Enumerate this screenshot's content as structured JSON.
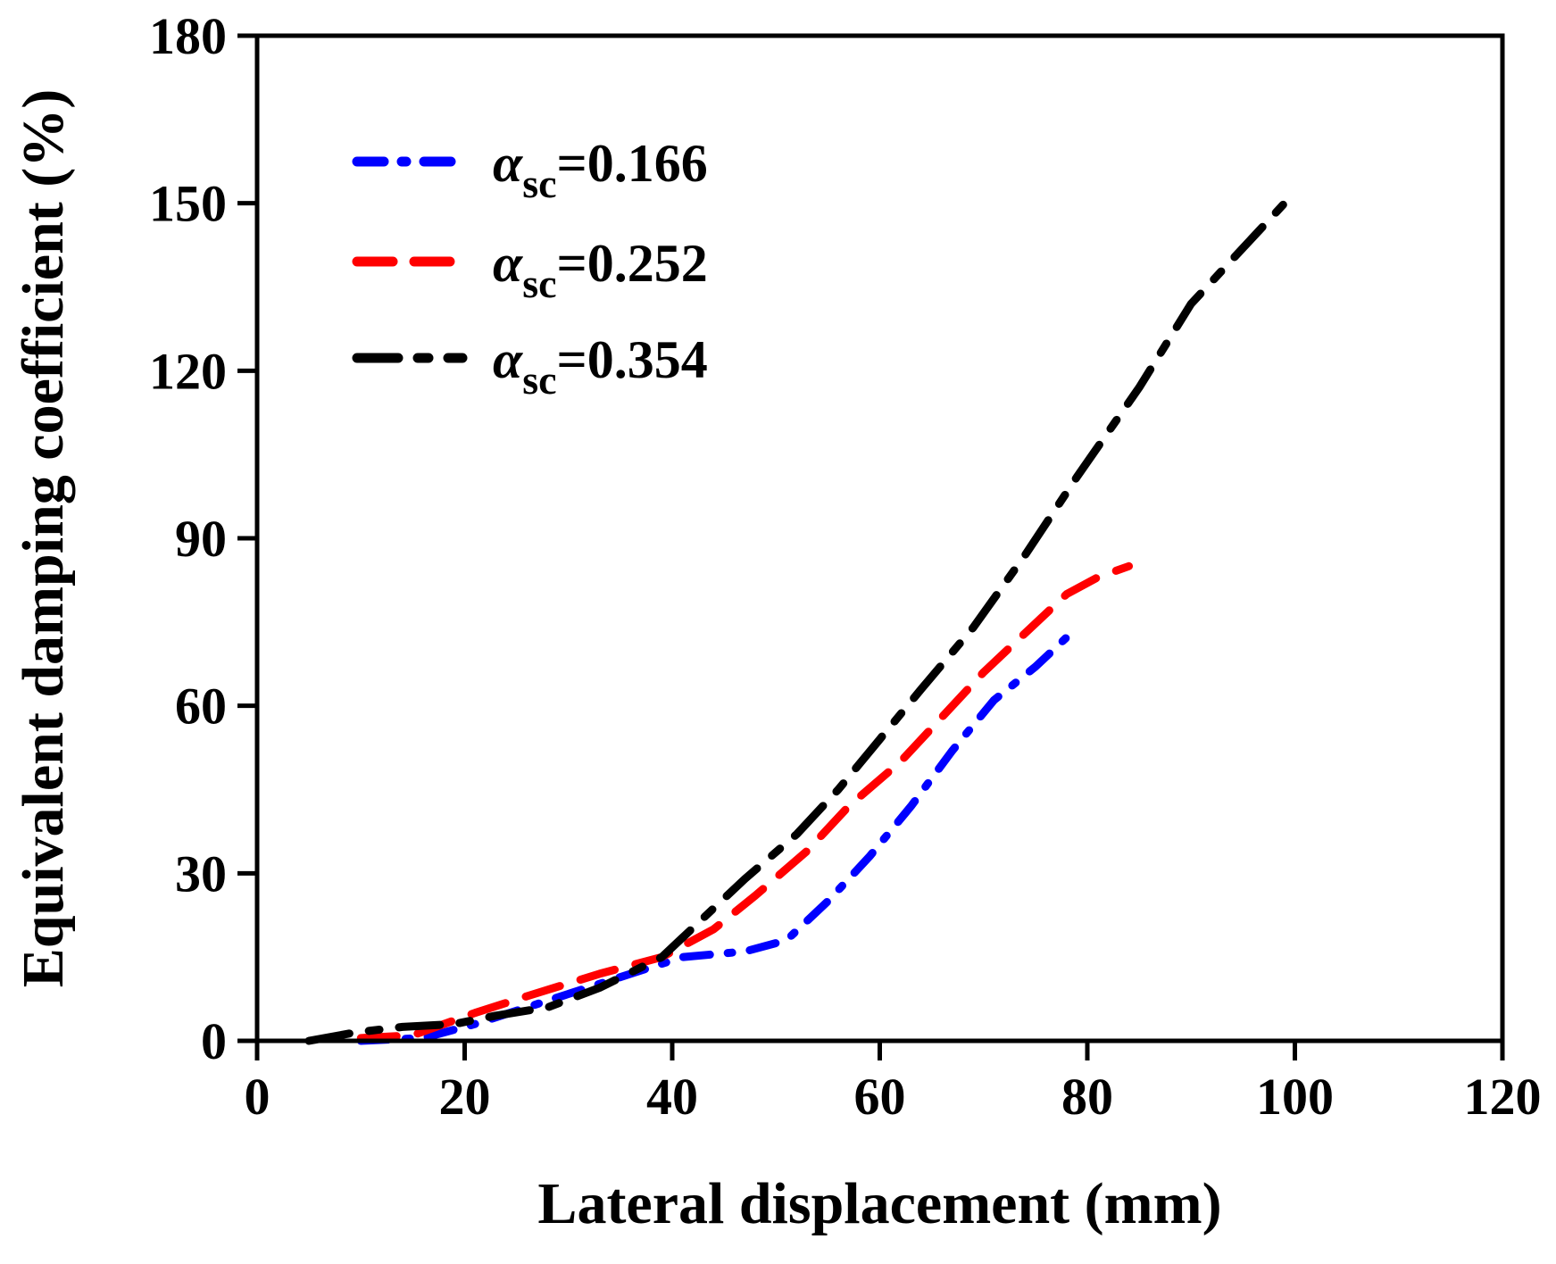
{
  "chart_data": {
    "type": "line",
    "title": "",
    "xlabel": "Lateral displacement (mm)",
    "ylabel": "Equivalent damping coefficient (%)",
    "xlim": [
      0,
      120
    ],
    "ylim": [
      0,
      180
    ],
    "xticks": [
      0,
      20,
      40,
      60,
      80,
      100,
      120
    ],
    "yticks": [
      0,
      30,
      60,
      90,
      120,
      150,
      180
    ],
    "grid": false,
    "legend_position": "top-left",
    "series": [
      {
        "name": "α_sc=0.166",
        "symbol": "α",
        "subscript": "sc",
        "value_text": "=0.166",
        "color": "#0000ff",
        "dash": "dash-dot",
        "x": [
          10,
          16,
          21,
          26,
          31,
          36,
          41,
          47,
          51,
          55,
          59,
          63,
          67,
          71,
          75,
          79
        ],
        "y": [
          0,
          0.5,
          3,
          6,
          9,
          12,
          15,
          16,
          18,
          25,
          33,
          42,
          52,
          61,
          67,
          74
        ]
      },
      {
        "name": "α_sc=0.252",
        "symbol": "α",
        "subscript": "sc",
        "value_text": "=0.252",
        "color": "#ff0000",
        "dash": "dash",
        "x": [
          10,
          15,
          21,
          26,
          33,
          39,
          44,
          48,
          53,
          57,
          62,
          66,
          70,
          74,
          78,
          81,
          84
        ],
        "y": [
          0.5,
          1,
          5,
          8,
          12,
          15,
          20,
          26,
          34,
          42,
          50,
          58,
          66,
          73,
          80,
          83,
          85
        ]
      },
      {
        "name": "α_sc=0.354",
        "symbol": "α",
        "subscript": "sc",
        "value_text": "=0.354",
        "color": "#000000",
        "dash": "long-dash-short-dash",
        "x": [
          5,
          9.5,
          14,
          19,
          23,
          28,
          33,
          39,
          43,
          47,
          52,
          56,
          60,
          64,
          69,
          74,
          79,
          85,
          90,
          95,
          100
        ],
        "y": [
          0,
          1.5,
          2.5,
          3,
          4.5,
          6,
          9.5,
          15,
          22,
          29,
          37,
          45,
          54,
          63,
          74,
          87,
          101,
          117,
          132,
          142,
          152
        ]
      }
    ]
  }
}
